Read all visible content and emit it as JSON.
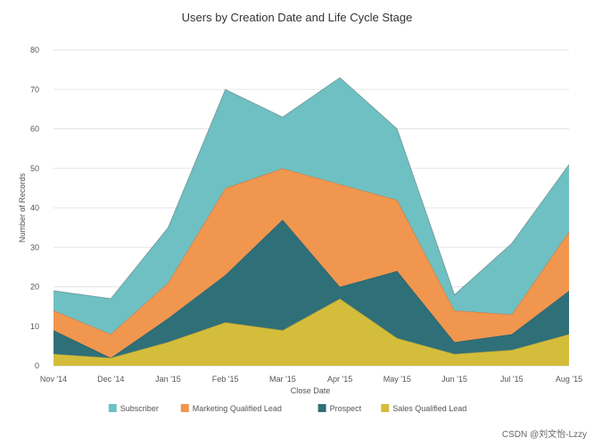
{
  "chart_data": {
    "type": "area",
    "stacked": true,
    "title": "Users by Creation Date and Life Cycle Stage",
    "xlabel": "Close Date",
    "ylabel": "Number of Records",
    "categories": [
      "Nov '14",
      "Dec '14",
      "Jan '15",
      "Feb '15",
      "Mar '15",
      "Apr '15",
      "May '15",
      "Jun '15",
      "Jul '15",
      "Aug '15"
    ],
    "ylim": [
      0,
      80
    ],
    "yticks": [
      0,
      10,
      20,
      30,
      40,
      50,
      60,
      70,
      80
    ],
    "grid": true,
    "legend_position": "bottom",
    "series": [
      {
        "name": "Sales Qualified Lead",
        "color": "#d4bd3a",
        "values": [
          3,
          2,
          6,
          11,
          9,
          17,
          7,
          3,
          4,
          8
        ]
      },
      {
        "name": "Prospect",
        "color": "#2f6f78",
        "values": [
          6,
          0,
          6,
          12,
          28,
          3,
          17,
          3,
          4,
          11
        ]
      },
      {
        "name": "Marketing Qualified Lead",
        "color": "#f0964f",
        "values": [
          5,
          6,
          9,
          22,
          13,
          26,
          18,
          8,
          5,
          15
        ]
      },
      {
        "name": "Subscriber",
        "color": "#6fc0c2",
        "values": [
          5,
          9,
          14,
          25,
          13,
          27,
          18,
          4,
          18,
          17
        ]
      }
    ],
    "legend_order": [
      "Subscriber",
      "Marketing Qualified Lead",
      "Prospect",
      "Sales Qualified Lead"
    ]
  },
  "watermark": "CSDN @刘文怡-Lzzy"
}
